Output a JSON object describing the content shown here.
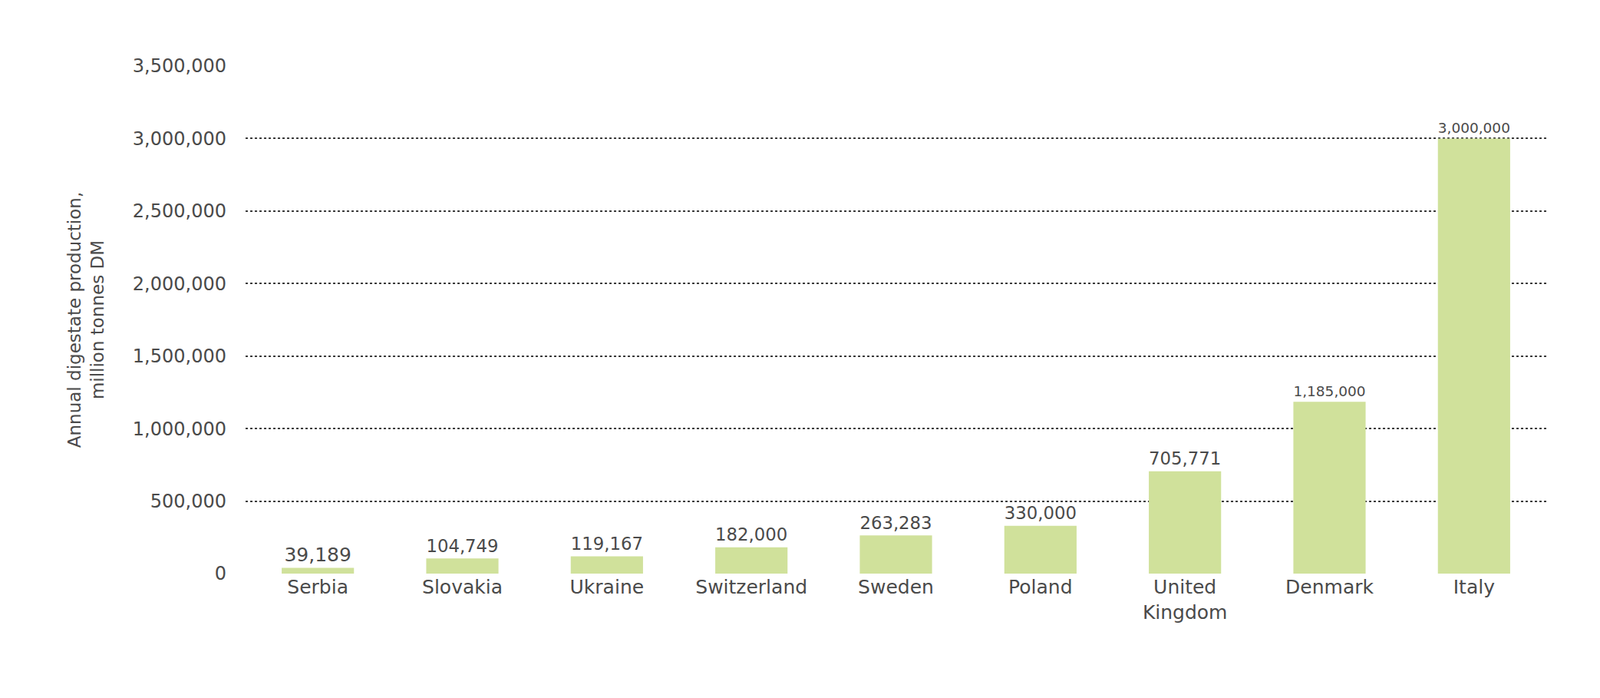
{
  "chart_data": {
    "type": "bar",
    "y_label": "Annual digestate production, million tonnes DM",
    "categories": [
      "Serbia",
      "Slovakia",
      "Ukraine",
      "Switzerland",
      "Sweden",
      "Poland",
      "United Kingdom",
      "Denmark",
      "Italy"
    ],
    "values": [
      39189,
      104749,
      119167,
      182000,
      263283,
      330000,
      705771,
      1185000,
      3000000
    ],
    "value_labels": [
      "39,189",
      "104,749",
      "119,167",
      "182,000",
      "263,283",
      "330,000",
      "705,771",
      "1,185,000",
      "3,000,000"
    ],
    "color": "#d0e19b",
    "ylim": [
      0,
      3500000
    ],
    "yticks": [
      0,
      {
        "value": 500000,
        "label": "500,000"
      },
      {
        "value": 1000000,
        "label": "1,000,000"
      },
      {
        "value": 1500000,
        "label": "1,500,000"
      },
      {
        "value": 2000000,
        "label": "2,000,000"
      },
      {
        "value": 2500000,
        "label": "2,500,000"
      },
      {
        "value": 3000000,
        "label": "3,000,000"
      },
      {
        "value": 3500000,
        "label": "3,500,000"
      }
    ],
    "grid": true,
    "data_labels": true
  }
}
